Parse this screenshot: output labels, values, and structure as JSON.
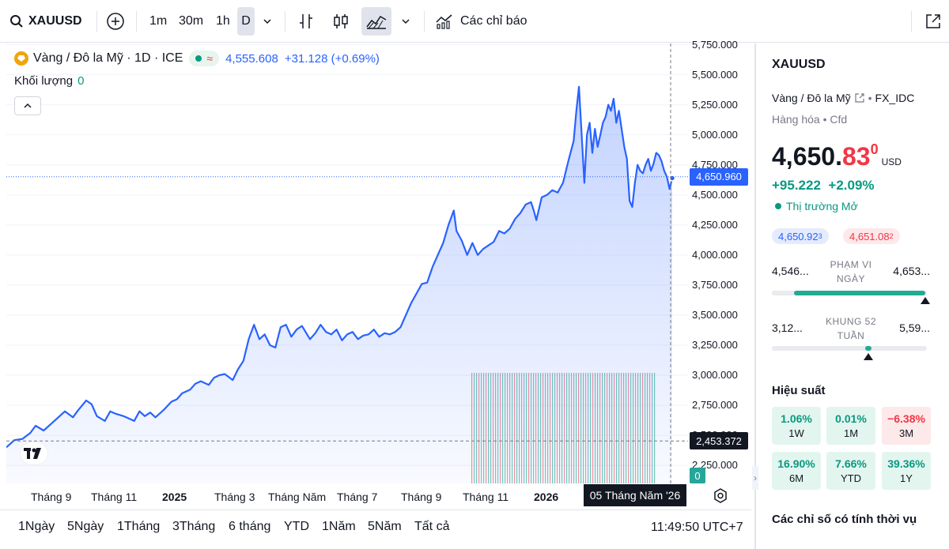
{
  "toolbar": {
    "symbol": "XAUUSD",
    "timeframes": [
      "1m",
      "30m",
      "1h",
      "D"
    ],
    "active_timeframe": "D",
    "indicators_label": "Các chỉ báo"
  },
  "legend": {
    "description": "Vàng / Đô la Mỹ · 1D · ICE",
    "last": "4,555.608",
    "change": "+31.128 (+0.69%)",
    "volume_label": "Khối lượng",
    "volume_value": "0"
  },
  "chart_data": {
    "type": "area",
    "series": [
      {
        "values": [
          [
            0,
            2400
          ],
          [
            6,
            2460
          ],
          [
            12,
            2470
          ],
          [
            18,
            2520
          ],
          [
            22,
            2580
          ],
          [
            28,
            2540
          ],
          [
            34,
            2600
          ],
          [
            40,
            2660
          ],
          [
            44,
            2700
          ],
          [
            50,
            2650
          ],
          [
            54,
            2710
          ],
          [
            60,
            2790
          ],
          [
            64,
            2760
          ],
          [
            68,
            2660
          ],
          [
            74,
            2620
          ],
          [
            78,
            2700
          ],
          [
            82,
            2680
          ],
          [
            88,
            2660
          ],
          [
            92,
            2640
          ],
          [
            96,
            2620
          ],
          [
            100,
            2700
          ],
          [
            104,
            2660
          ],
          [
            108,
            2690
          ],
          [
            112,
            2650
          ],
          [
            118,
            2710
          ],
          [
            124,
            2780
          ],
          [
            128,
            2800
          ],
          [
            132,
            2850
          ],
          [
            138,
            2880
          ],
          [
            142,
            2930
          ],
          [
            146,
            2950
          ],
          [
            152,
            2920
          ],
          [
            156,
            2980
          ],
          [
            160,
            3000
          ],
          [
            164,
            3010
          ],
          [
            170,
            2960
          ],
          [
            174,
            3050
          ],
          [
            178,
            3120
          ],
          [
            182,
            3300
          ],
          [
            186,
            3420
          ],
          [
            190,
            3300
          ],
          [
            194,
            3340
          ],
          [
            198,
            3250
          ],
          [
            202,
            3230
          ],
          [
            206,
            3400
          ],
          [
            210,
            3420
          ],
          [
            214,
            3320
          ],
          [
            218,
            3380
          ],
          [
            222,
            3410
          ],
          [
            228,
            3300
          ],
          [
            232,
            3350
          ],
          [
            236,
            3420
          ],
          [
            240,
            3360
          ],
          [
            244,
            3340
          ],
          [
            248,
            3380
          ],
          [
            252,
            3290
          ],
          [
            256,
            3340
          ],
          [
            260,
            3360
          ],
          [
            264,
            3300
          ],
          [
            268,
            3330
          ],
          [
            272,
            3340
          ],
          [
            276,
            3380
          ],
          [
            280,
            3320
          ],
          [
            284,
            3350
          ],
          [
            288,
            3340
          ],
          [
            292,
            3360
          ],
          [
            296,
            3400
          ],
          [
            300,
            3500
          ],
          [
            304,
            3600
          ],
          [
            308,
            3680
          ],
          [
            312,
            3760
          ],
          [
            316,
            3770
          ],
          [
            320,
            3900
          ],
          [
            324,
            4000
          ],
          [
            328,
            4100
          ],
          [
            332,
            4250
          ],
          [
            336,
            4370
          ],
          [
            338,
            4200
          ],
          [
            342,
            4120
          ],
          [
            346,
            4000
          ],
          [
            350,
            4100
          ],
          [
            354,
            4000
          ],
          [
            358,
            4050
          ],
          [
            362,
            4080
          ],
          [
            366,
            4110
          ],
          [
            370,
            4200
          ],
          [
            374,
            4180
          ],
          [
            378,
            4220
          ],
          [
            382,
            4300
          ],
          [
            386,
            4350
          ],
          [
            390,
            4420
          ],
          [
            394,
            4440
          ],
          [
            396,
            4370
          ],
          [
            398,
            4290
          ],
          [
            402,
            4480
          ],
          [
            406,
            4500
          ],
          [
            410,
            4540
          ],
          [
            414,
            4520
          ],
          [
            418,
            4600
          ],
          [
            422,
            4780
          ],
          [
            426,
            4950
          ],
          [
            428,
            5200
          ],
          [
            430,
            5400
          ],
          [
            432,
            5000
          ],
          [
            434,
            4600
          ],
          [
            436,
            5000
          ],
          [
            438,
            5100
          ],
          [
            440,
            4850
          ],
          [
            442,
            5050
          ],
          [
            444,
            4900
          ],
          [
            446,
            5000
          ],
          [
            448,
            5100
          ],
          [
            450,
            5150
          ],
          [
            452,
            5250
          ],
          [
            454,
            5200
          ],
          [
            456,
            5300
          ],
          [
            458,
            5100
          ],
          [
            460,
            5200
          ],
          [
            462,
            5050
          ],
          [
            464,
            4900
          ],
          [
            466,
            4800
          ],
          [
            468,
            4450
          ],
          [
            470,
            4400
          ],
          [
            472,
            4600
          ],
          [
            474,
            4750
          ],
          [
            476,
            4700
          ],
          [
            478,
            4680
          ],
          [
            480,
            4750
          ],
          [
            482,
            4800
          ],
          [
            484,
            4700
          ],
          [
            486,
            4760
          ],
          [
            488,
            4850
          ],
          [
            490,
            4830
          ],
          [
            492,
            4780
          ],
          [
            494,
            4700
          ],
          [
            496,
            4650
          ],
          [
            498,
            4550
          ],
          [
            500,
            4640
          ]
        ]
      }
    ],
    "x_ticks": [
      "Tháng 9",
      "Tháng 11",
      "2025",
      "Tháng 3",
      "Tháng Năm",
      "Tháng 7",
      "Tháng 9",
      "Tháng 11",
      "2026"
    ],
    "x_ticks_bold": [
      "2025",
      "2026"
    ],
    "y_ticks": [
      "5,750.000",
      "5,500.000",
      "5,250.000",
      "5,000.000",
      "4,750.000",
      "4,500.000",
      "4,250.000",
      "4,000.000",
      "3,750.000",
      "3,500.000",
      "3,250.000",
      "3,000.000",
      "2,750.000",
      "2,500.000",
      "2,250.000"
    ],
    "y_range": [
      2100,
      5760
    ],
    "current_price_label": "4,650.960",
    "crosshair_price_label": "2,453.372",
    "crosshair_price": 2453.372,
    "crosshair_date_label": "05 Tháng Năm '26",
    "volume_label": "0",
    "colors": {
      "line": "#2962ff",
      "up": "#089981",
      "down": "#f23645"
    }
  },
  "bottom": {
    "ranges": [
      "1Ngày",
      "5Ngày",
      "1Tháng",
      "3Tháng",
      "6 tháng",
      "YTD",
      "1Năm",
      "5Năm",
      "Tất cả"
    ],
    "clock": "11:49:50 UTC+7"
  },
  "panel": {
    "title": "XAUUSD",
    "description": "Vàng / Đô la Mỹ",
    "exchange": "FX_IDC",
    "category": "Hàng hóa",
    "type": "Cfd",
    "price_main": "4,650.",
    "price_red": "83",
    "price_sup": "0",
    "currency": "USD",
    "change": "+95.222",
    "change_pct": "+2.09%",
    "market_status": "Thị trường Mở",
    "bid": "4,650.92",
    "bid_sup": "3",
    "ask": "4,651.08",
    "ask_sup": "2",
    "day_range": {
      "low": "4,546...",
      "high": "4,653...",
      "caption_1": "PHẠM VI",
      "caption_2": "NGÀY",
      "position": 0.99
    },
    "week52_range": {
      "low": "3,12...",
      "high": "5,59...",
      "caption_1": "KHUNG 52",
      "caption_2": "TUẦN",
      "position": 0.62
    },
    "performance_title": "Hiệu suất",
    "performance": [
      {
        "value": "1.06%",
        "label": "1W",
        "dir": "up"
      },
      {
        "value": "0.01%",
        "label": "1M",
        "dir": "up"
      },
      {
        "value": "−6.38%",
        "label": "3M",
        "dir": "down"
      },
      {
        "value": "16.90%",
        "label": "6M",
        "dir": "up"
      },
      {
        "value": "7.66%",
        "label": "YTD",
        "dir": "up"
      },
      {
        "value": "39.36%",
        "label": "1Y",
        "dir": "up"
      }
    ],
    "seasonal_title": "Các chỉ số có tính thời vụ"
  }
}
